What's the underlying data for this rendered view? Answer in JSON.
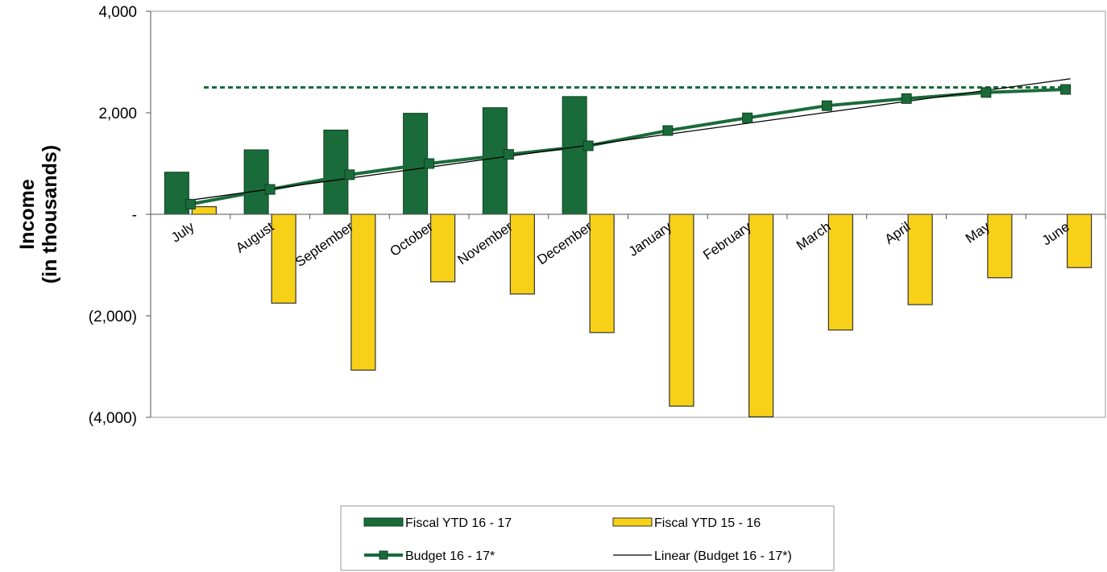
{
  "chart_data": {
    "type": "bar",
    "title": "",
    "xlabel": "",
    "ylabel_line1": "Income",
    "ylabel_line2": "(in thousands)",
    "ylim": [
      -4000,
      4000
    ],
    "ytick_values": [
      4000,
      2000,
      0,
      -2000,
      -4000
    ],
    "ytick_labels": [
      "4,000",
      "2,000",
      "-",
      "(2,000)",
      "(4,000)"
    ],
    "categories": [
      "July",
      "August",
      "September",
      "October",
      "November",
      "December",
      "January",
      "February",
      "March",
      "April",
      "May",
      "June"
    ],
    "series": [
      {
        "name": "Fiscal YTD 16 - 17",
        "kind": "bar",
        "color": "#1a6b3a",
        "values": [
          830,
          1270,
          1660,
          1990,
          2100,
          2320,
          null,
          null,
          null,
          null,
          null,
          null
        ]
      },
      {
        "name": "Fiscal YTD 15 - 16",
        "kind": "bar",
        "color": "#f7d117",
        "values": [
          150,
          -1750,
          -3070,
          -1330,
          -1570,
          -2330,
          -3780,
          -3990,
          -2280,
          -1780,
          -1250,
          -1050
        ]
      },
      {
        "name": "Budget 16 - 17*",
        "kind": "line",
        "color": "#1a6b3a",
        "marker": "square",
        "values": [
          200,
          490,
          780,
          1000,
          1180,
          1350,
          1650,
          1900,
          2140,
          2280,
          2400,
          2460
        ]
      },
      {
        "name": "Linear (Budget 16 - 17*)",
        "kind": "trendline",
        "color": "#000000",
        "values": [
          280,
          490,
          700,
          910,
          1120,
          1330,
          1560,
          1780,
          2010,
          2240,
          2450,
          2670
        ]
      }
    ],
    "reference_line": {
      "value": 2500,
      "color": "#1a6b3a",
      "style": "dashed"
    },
    "grid": false,
    "legend_position": "bottom"
  }
}
